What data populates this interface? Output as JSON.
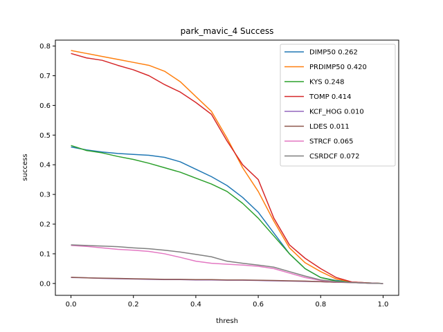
{
  "chart_data": {
    "type": "line",
    "title": "park_mavic_4 Success",
    "xlabel": "thresh",
    "ylabel": "success",
    "xlim": [
      -0.05,
      1.05
    ],
    "ylim": [
      -0.04,
      0.82
    ],
    "xticks": [
      0.0,
      0.2,
      0.4,
      0.6,
      0.8,
      1.0
    ],
    "xtick_labels": [
      "0.0",
      "0.2",
      "0.4",
      "0.6",
      "0.8",
      "1.0"
    ],
    "yticks": [
      0.0,
      0.1,
      0.2,
      0.3,
      0.4,
      0.5,
      0.6,
      0.7,
      0.8
    ],
    "ytick_labels": [
      "0.0",
      "0.1",
      "0.2",
      "0.3",
      "0.4",
      "0.5",
      "0.6",
      "0.7",
      "0.8"
    ],
    "grid": false,
    "legend_position": "top-right",
    "x": [
      0.0,
      0.05,
      0.1,
      0.15,
      0.2,
      0.25,
      0.3,
      0.35,
      0.4,
      0.45,
      0.5,
      0.55,
      0.6,
      0.65,
      0.7,
      0.75,
      0.8,
      0.85,
      0.9,
      0.95,
      1.0
    ],
    "series": [
      {
        "name": "DIMP50 0.262",
        "color": "#1f77b4",
        "values": [
          0.46,
          0.45,
          0.443,
          0.438,
          0.435,
          0.432,
          0.425,
          0.41,
          0.385,
          0.36,
          0.33,
          0.29,
          0.24,
          0.17,
          0.1,
          0.05,
          0.02,
          0.01,
          0.005,
          0.002,
          0.0
        ]
      },
      {
        "name": "PRDIMP50 0.420",
        "color": "#ff7f0e",
        "values": [
          0.785,
          0.775,
          0.765,
          0.755,
          0.745,
          0.735,
          0.715,
          0.68,
          0.63,
          0.58,
          0.49,
          0.39,
          0.31,
          0.21,
          0.12,
          0.07,
          0.04,
          0.015,
          0.005,
          0.002,
          0.0
        ]
      },
      {
        "name": "KYS 0.248",
        "color": "#2ca02c",
        "values": [
          0.465,
          0.448,
          0.44,
          0.428,
          0.418,
          0.405,
          0.39,
          0.375,
          0.355,
          0.335,
          0.31,
          0.27,
          0.22,
          0.16,
          0.1,
          0.05,
          0.02,
          0.008,
          0.004,
          0.002,
          0.0
        ]
      },
      {
        "name": "TOMP 0.414",
        "color": "#d62728",
        "values": [
          0.775,
          0.76,
          0.752,
          0.735,
          0.72,
          0.7,
          0.67,
          0.645,
          0.61,
          0.57,
          0.48,
          0.4,
          0.35,
          0.22,
          0.13,
          0.085,
          0.05,
          0.02,
          0.005,
          0.002,
          0.0
        ]
      },
      {
        "name": "KCF_HOG 0.010",
        "color": "#9467bd",
        "values": [
          0.02,
          0.019,
          0.017,
          0.016,
          0.015,
          0.014,
          0.013,
          0.013,
          0.012,
          0.012,
          0.011,
          0.011,
          0.01,
          0.009,
          0.008,
          0.007,
          0.006,
          0.004,
          0.003,
          0.001,
          0.0
        ]
      },
      {
        "name": "LDES 0.011",
        "color": "#8c564b",
        "values": [
          0.021,
          0.019,
          0.018,
          0.017,
          0.016,
          0.015,
          0.014,
          0.014,
          0.013,
          0.013,
          0.012,
          0.012,
          0.011,
          0.01,
          0.009,
          0.008,
          0.006,
          0.004,
          0.003,
          0.001,
          0.0
        ]
      },
      {
        "name": "STRCF 0.065",
        "color": "#e377c2",
        "values": [
          0.128,
          0.125,
          0.12,
          0.115,
          0.112,
          0.108,
          0.1,
          0.088,
          0.075,
          0.068,
          0.065,
          0.062,
          0.058,
          0.05,
          0.035,
          0.02,
          0.01,
          0.005,
          0.003,
          0.001,
          0.0
        ]
      },
      {
        "name": "CSRDCF 0.072",
        "color": "#7f7f7f",
        "values": [
          0.13,
          0.128,
          0.126,
          0.124,
          0.12,
          0.117,
          0.112,
          0.106,
          0.098,
          0.09,
          0.075,
          0.068,
          0.062,
          0.055,
          0.04,
          0.025,
          0.012,
          0.006,
          0.003,
          0.001,
          0.0
        ]
      }
    ]
  }
}
